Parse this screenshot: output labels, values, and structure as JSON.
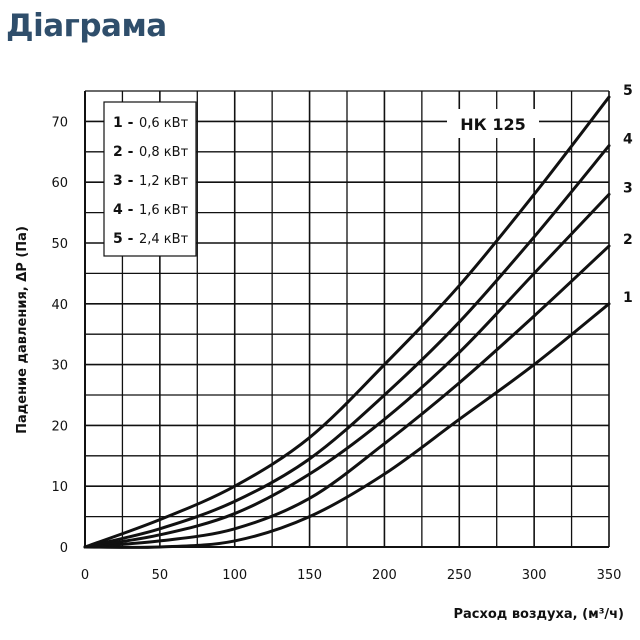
{
  "title": "Діаграма",
  "chart_data": {
    "type": "line",
    "title": "",
    "model_label": "НК 125",
    "xlabel": "Расход воздуха, (м³/ч)",
    "ylabel": "Падение давления, ΔP (Па)",
    "xlim": [
      0,
      350
    ],
    "ylim": [
      0,
      75
    ],
    "xticks": [
      0,
      50,
      100,
      150,
      200,
      250,
      300,
      350
    ],
    "yticks": [
      0,
      10,
      20,
      30,
      40,
      50,
      60,
      70
    ],
    "grid": true,
    "legend_position": "top-left",
    "legend": [
      {
        "num": "1",
        "sep": "-",
        "value": "0,6",
        "unit": "кВт"
      },
      {
        "num": "2",
        "sep": "-",
        "value": "0,8",
        "unit": "кВт"
      },
      {
        "num": "3",
        "sep": "-",
        "value": "1,2",
        "unit": "кВт"
      },
      {
        "num": "4",
        "sep": "-",
        "value": "1,6",
        "unit": "кВт"
      },
      {
        "num": "5",
        "sep": "-",
        "value": "2,4",
        "unit": "кВт"
      }
    ],
    "x": [
      0,
      50,
      100,
      150,
      200,
      250,
      300,
      350
    ],
    "series": [
      {
        "name": "1",
        "values": [
          0,
          0,
          1,
          5,
          12,
          21,
          30,
          40
        ]
      },
      {
        "name": "2",
        "values": [
          0,
          1,
          3,
          8,
          17,
          27,
          38,
          49.5
        ]
      },
      {
        "name": "3",
        "values": [
          0,
          2,
          5.5,
          12,
          21,
          32,
          45,
          58
        ]
      },
      {
        "name": "4",
        "values": [
          0,
          3,
          7.5,
          14.5,
          25,
          37,
          51,
          66
        ]
      },
      {
        "name": "5",
        "values": [
          0,
          4.5,
          10,
          18,
          30,
          43,
          58,
          74
        ]
      }
    ]
  }
}
